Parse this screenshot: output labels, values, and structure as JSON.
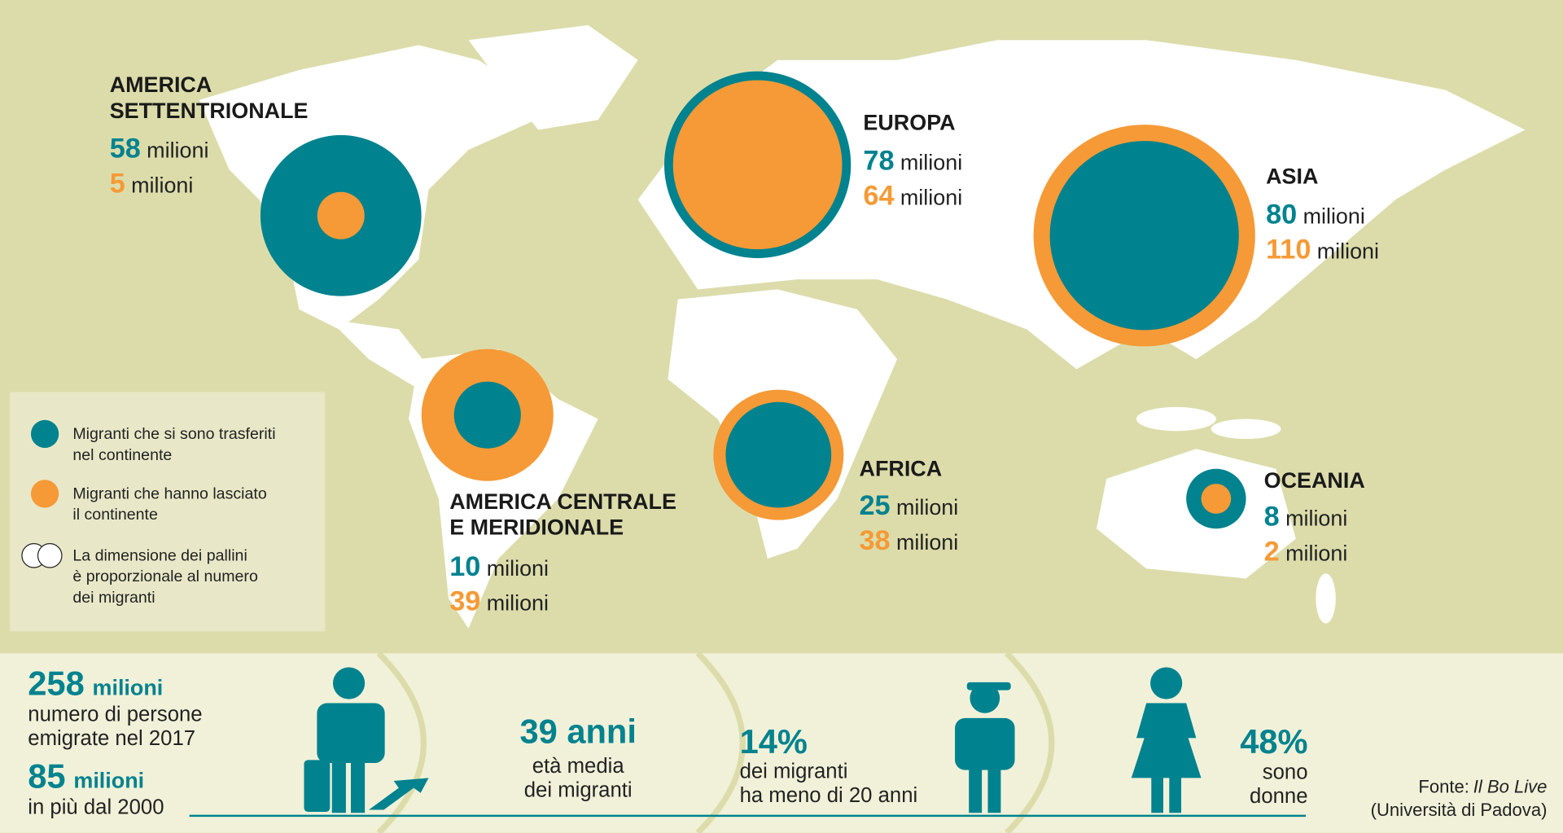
{
  "unit": "milioni",
  "regions": [
    {
      "name": [
        "AMERICA",
        "SETTENTRIONALE"
      ],
      "in": 58,
      "out": 5
    },
    {
      "name": [
        "EUROPA"
      ],
      "in": 78,
      "out": 64
    },
    {
      "name": [
        "ASIA"
      ],
      "in": 80,
      "out": 110
    },
    {
      "name": [
        "AMERICA CENTRALE",
        "E MERIDIONALE"
      ],
      "in": 10,
      "out": 39
    },
    {
      "name": [
        "AFRICA"
      ],
      "in": 25,
      "out": 38
    },
    {
      "name": [
        "OCEANIA"
      ],
      "in": 8,
      "out": 2
    }
  ],
  "legend": {
    "in": [
      "Migranti che si sono trasferiti",
      "nel continente"
    ],
    "out": [
      "Migranti che hanno lasciato",
      "il continente"
    ],
    "size": [
      "La dimensione dei pallini",
      "è proporzionale al numero",
      "dei migranti"
    ]
  },
  "stats": {
    "total": {
      "number": "258",
      "unit": "milioni",
      "text": [
        "numero di persone",
        "emigrate nel 2017"
      ]
    },
    "growth": {
      "number": "85",
      "unit": "milioni",
      "text": [
        "in più dal 2000"
      ]
    },
    "age": {
      "number": "39 anni",
      "text": [
        "età media",
        "dei migranti"
      ]
    },
    "young": {
      "number": "14%",
      "text": [
        "dei migranti",
        "ha meno di 20 anni"
      ]
    },
    "women": {
      "number": "48%",
      "text": [
        "sono",
        "donne"
      ]
    }
  },
  "source": {
    "prefix": "Fonte:",
    "name": "Il Bo Live",
    "org": "(Università di Padova)"
  }
}
